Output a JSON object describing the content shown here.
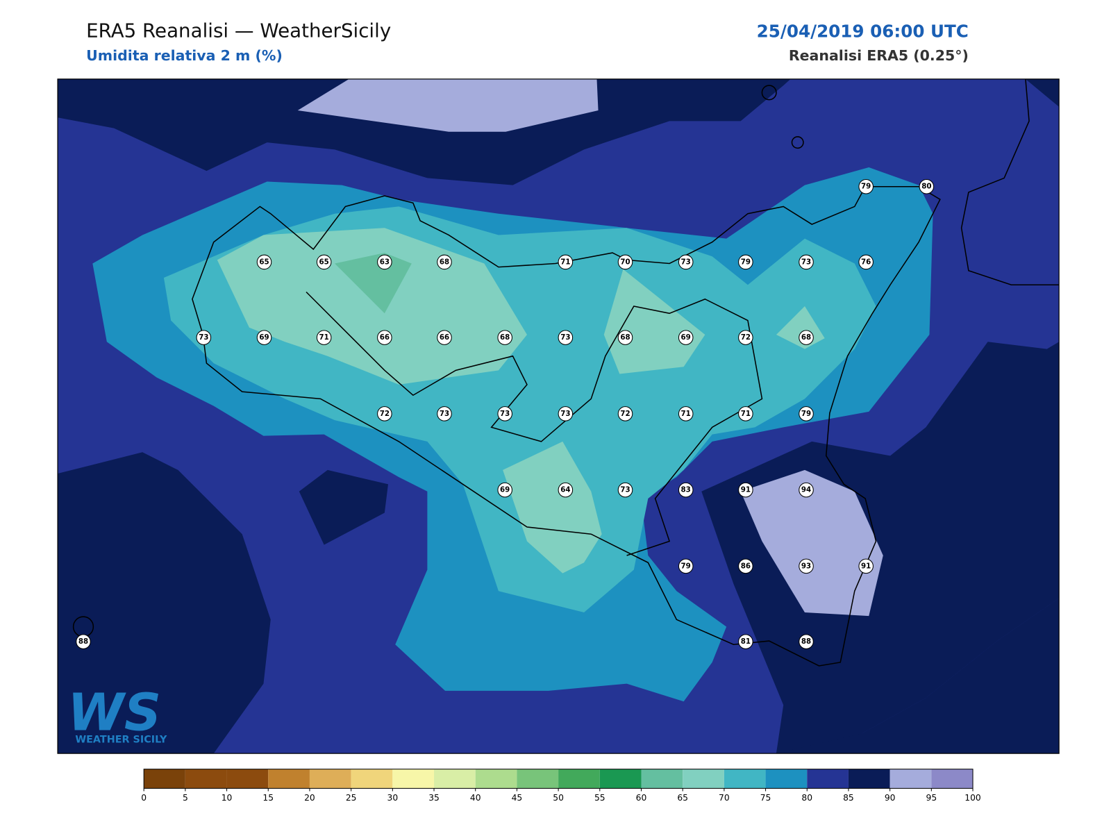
{
  "header": {
    "title": "ERA5 Reanalisi — WeatherSicily",
    "subtitle": "Umidita relativa 2 m (%)",
    "datetime": "25/04/2019 06:00 UTC",
    "source": "Reanalisi ERA5 (0.25°)"
  },
  "stations": [
    79,
    80,
    65,
    65,
    63,
    68,
    71,
    70,
    73,
    79,
    73,
    76,
    73,
    69,
    71,
    66,
    66,
    68,
    73,
    68,
    69,
    72,
    68,
    72,
    73,
    73,
    73,
    72,
    71,
    71,
    79,
    69,
    64,
    73,
    83,
    91,
    94,
    79,
    86,
    93,
    91,
    88,
    81,
    88
  ],
  "colorbar": {
    "ticks": [
      0,
      5,
      10,
      15,
      20,
      25,
      30,
      35,
      40,
      45,
      50,
      55,
      60,
      65,
      70,
      75,
      80,
      85,
      90,
      95,
      100
    ],
    "colors": [
      "#7a420a",
      "#8c4b0e",
      "#8c4b0e",
      "#c0812e",
      "#deae58",
      "#f0d57b",
      "#f7f6a8",
      "#d9eea6",
      "#addc8e",
      "#78c47a",
      "#42a95b",
      "#1a9852",
      "#64bfa0",
      "#81d0c0",
      "#41b6c4",
      "#1d91c0",
      "#253494",
      "#0a1c57",
      "#a5acdc",
      "#8c89c8"
    ]
  },
  "logo": {
    "mark": "WS",
    "text": "WEATHER SICILY"
  }
}
